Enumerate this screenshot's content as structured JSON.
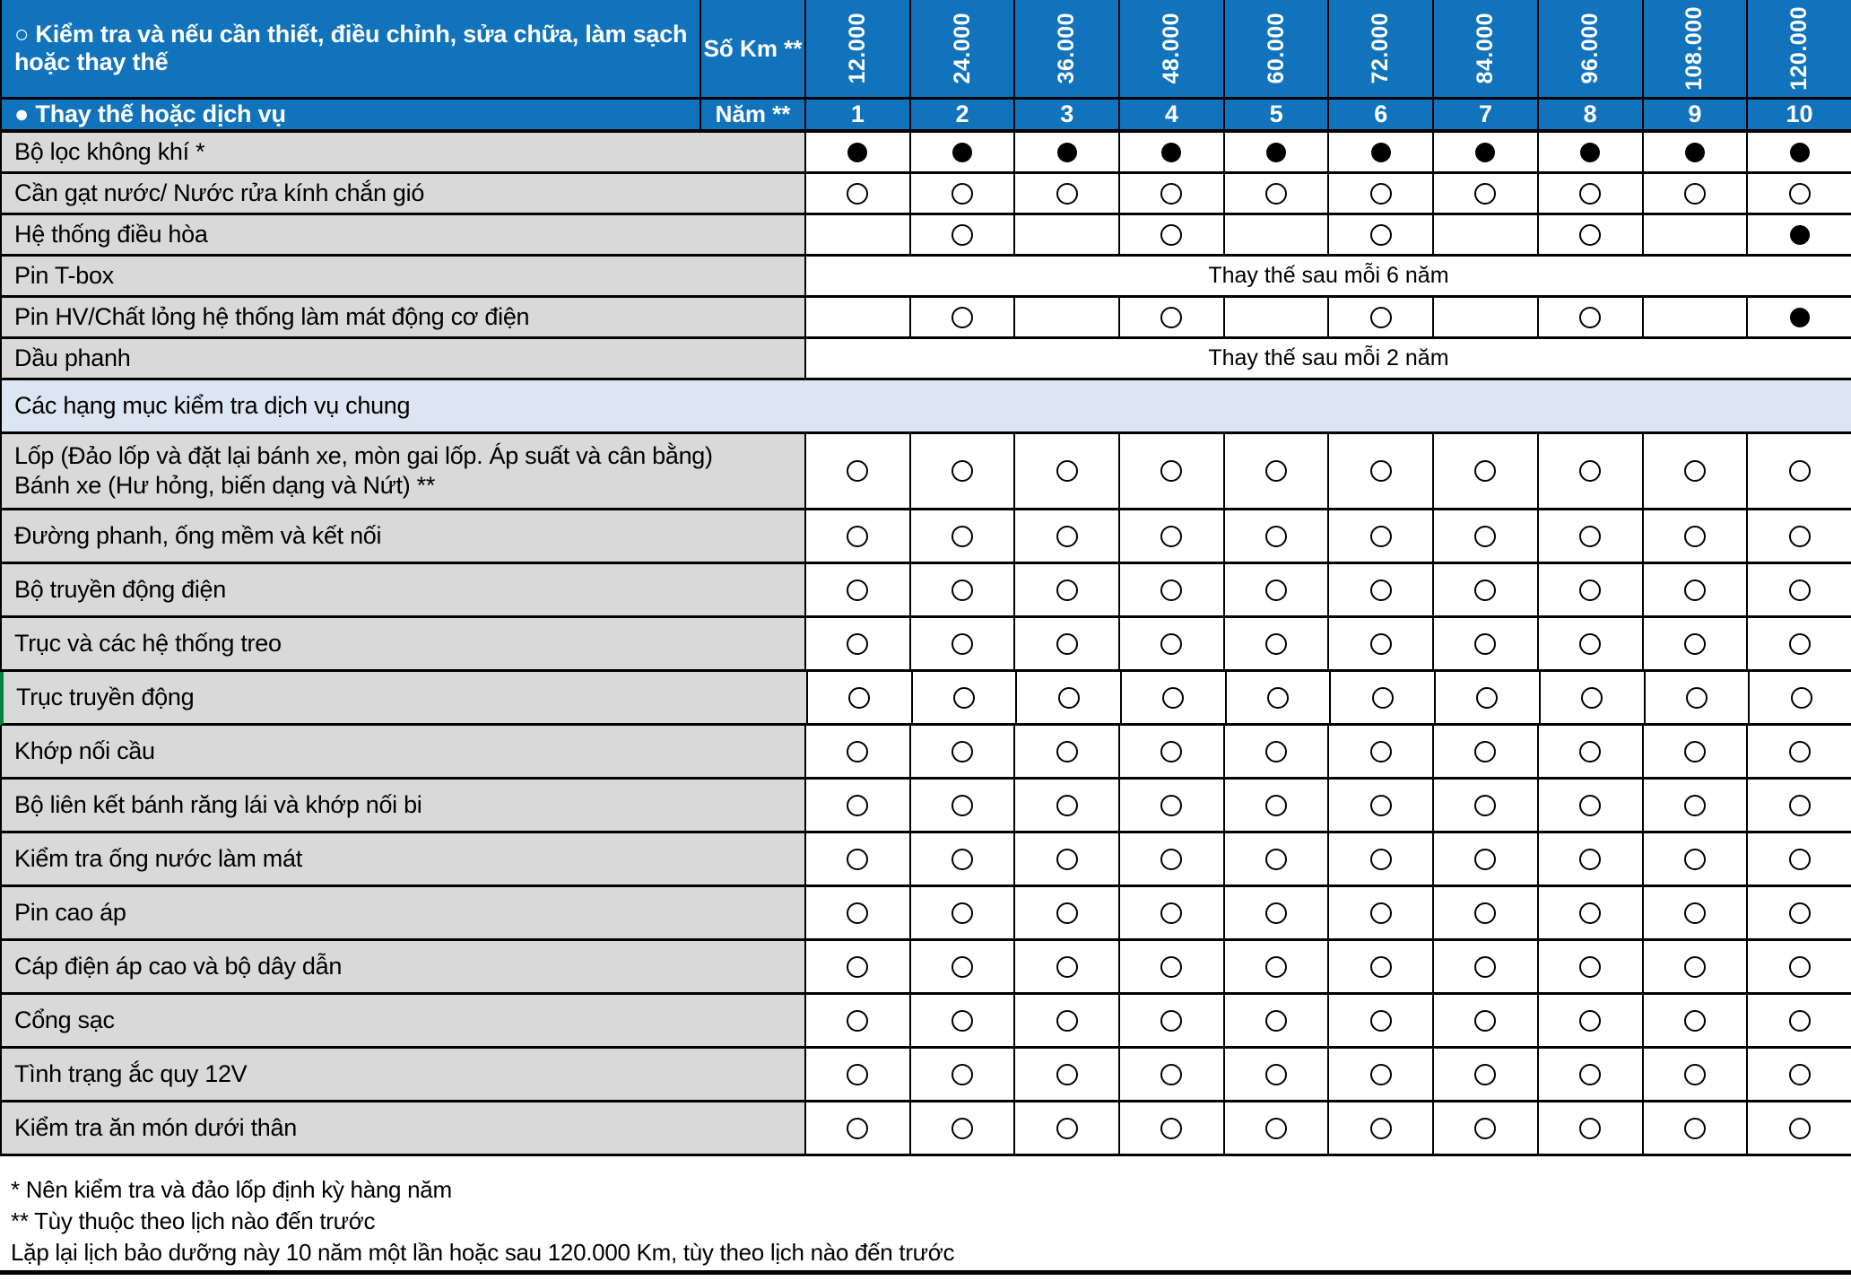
{
  "header": {
    "row1_label": "○ Kiểm tra và nếu cần thiết, điều chỉnh, sửa chữa, làm sạch hoặc thay thế",
    "row1_unit": "Số Km **",
    "km_values": [
      "12.000",
      "24.000",
      "36.000",
      "48.000",
      "60.000",
      "72.000",
      "84.000",
      "96.000",
      "108.000",
      "120.000"
    ],
    "row2_label": "● Thay thế hoặc dịch vụ",
    "row2_unit": "Năm **",
    "year_values": [
      "1",
      "2",
      "3",
      "4",
      "5",
      "6",
      "7",
      "8",
      "9",
      "10"
    ]
  },
  "symbols": {
    "open": "circle-outline — inspect and if necessary adjust, repair, clean or replace",
    "filled": "circle-filled — replace or service"
  },
  "rows": [
    {
      "label": "Bộ lọc không khí *",
      "cells": [
        "filled",
        "filled",
        "filled",
        "filled",
        "filled",
        "filled",
        "filled",
        "filled",
        "filled",
        "filled"
      ]
    },
    {
      "label": "Cần gạt nước/ Nước rửa kính chắn gió",
      "cells": [
        "open",
        "open",
        "open",
        "open",
        "open",
        "open",
        "open",
        "open",
        "open",
        "open"
      ]
    },
    {
      "label": "Hệ thống điều hòa",
      "cells": [
        "",
        "open",
        "",
        "open",
        "",
        "open",
        "",
        "open",
        "",
        "filled"
      ]
    },
    {
      "label": "Pin T-box",
      "merged": "Thay thế sau mỗi 6 năm"
    },
    {
      "label": "Pin HV/Chất lỏng hệ thống làm mát động cơ điện",
      "cells": [
        "",
        "open",
        "",
        "open",
        "",
        "open",
        "",
        "open",
        "",
        "filled"
      ]
    },
    {
      "label": "Dầu phanh",
      "merged": "Thay thế sau mỗi 2 năm"
    },
    {
      "section": "Các hạng mục kiểm tra dịch vụ chung"
    },
    {
      "label": "Lốp (Đảo lốp và đặt lại bánh xe, mòn gai lốp. Áp suất và cân bằng)",
      "label2": "Bánh xe (Hư hỏng, biến dạng và Nứt) **",
      "tall": true,
      "cells": [
        "open",
        "open",
        "open",
        "open",
        "open",
        "open",
        "open",
        "open",
        "open",
        "open"
      ]
    },
    {
      "label": "Đường phanh, ống mềm và kết nối",
      "cells": [
        "open",
        "open",
        "open",
        "open",
        "open",
        "open",
        "open",
        "open",
        "open",
        "open"
      ]
    },
    {
      "label": "Bộ truyền động điện",
      "cells": [
        "open",
        "open",
        "open",
        "open",
        "open",
        "open",
        "open",
        "open",
        "open",
        "open"
      ]
    },
    {
      "label": "Trục và các hệ thống treo",
      "cells": [
        "open",
        "open",
        "open",
        "open",
        "open",
        "open",
        "open",
        "open",
        "open",
        "open"
      ]
    },
    {
      "label": "Trục truyền động",
      "marker": true,
      "cells": [
        "open",
        "open",
        "open",
        "open",
        "open",
        "open",
        "open",
        "open",
        "open",
        "open"
      ]
    },
    {
      "label": "Khớp nối cầu",
      "cells": [
        "open",
        "open",
        "open",
        "open",
        "open",
        "open",
        "open",
        "open",
        "open",
        "open"
      ]
    },
    {
      "label": "Bộ liên kết bánh răng lái và khớp nối bi",
      "cells": [
        "open",
        "open",
        "open",
        "open",
        "open",
        "open",
        "open",
        "open",
        "open",
        "open"
      ]
    },
    {
      "label": "Kiểm tra ống nước làm mát",
      "cells": [
        "open",
        "open",
        "open",
        "open",
        "open",
        "open",
        "open",
        "open",
        "open",
        "open"
      ]
    },
    {
      "label": "Pin cao áp",
      "cells": [
        "open",
        "open",
        "open",
        "open",
        "open",
        "open",
        "open",
        "open",
        "open",
        "open"
      ]
    },
    {
      "label": "Cáp điện áp cao và bộ dây dẫn",
      "cells": [
        "open",
        "open",
        "open",
        "open",
        "open",
        "open",
        "open",
        "open",
        "open",
        "open"
      ]
    },
    {
      "label": "Cổng sạc",
      "cells": [
        "open",
        "open",
        "open",
        "open",
        "open",
        "open",
        "open",
        "open",
        "open",
        "open"
      ]
    },
    {
      "label": "Tình trạng ắc quy 12V",
      "cells": [
        "open",
        "open",
        "open",
        "open",
        "open",
        "open",
        "open",
        "open",
        "open",
        "open"
      ]
    },
    {
      "label": "Kiểm tra ăn món dưới thân",
      "cells": [
        "open",
        "open",
        "open",
        "open",
        "open",
        "open",
        "open",
        "open",
        "open",
        "open"
      ]
    }
  ],
  "footnotes": [
    "* Nên kiểm tra và đảo lốp định kỳ hàng năm",
    "** Tùy thuộc theo lịch nào đến trước",
    "Lặp lại lịch bảo dưỡng này 10 năm một lần hoặc sau 120.000 Km, tùy theo lịch nào đến trước"
  ],
  "colors": {
    "header_blue": "#1273BD",
    "label_gray": "#D9D9D9",
    "section_blue": "#DCE6F2",
    "border_black": "#000000",
    "marker_green": "#00843D"
  }
}
